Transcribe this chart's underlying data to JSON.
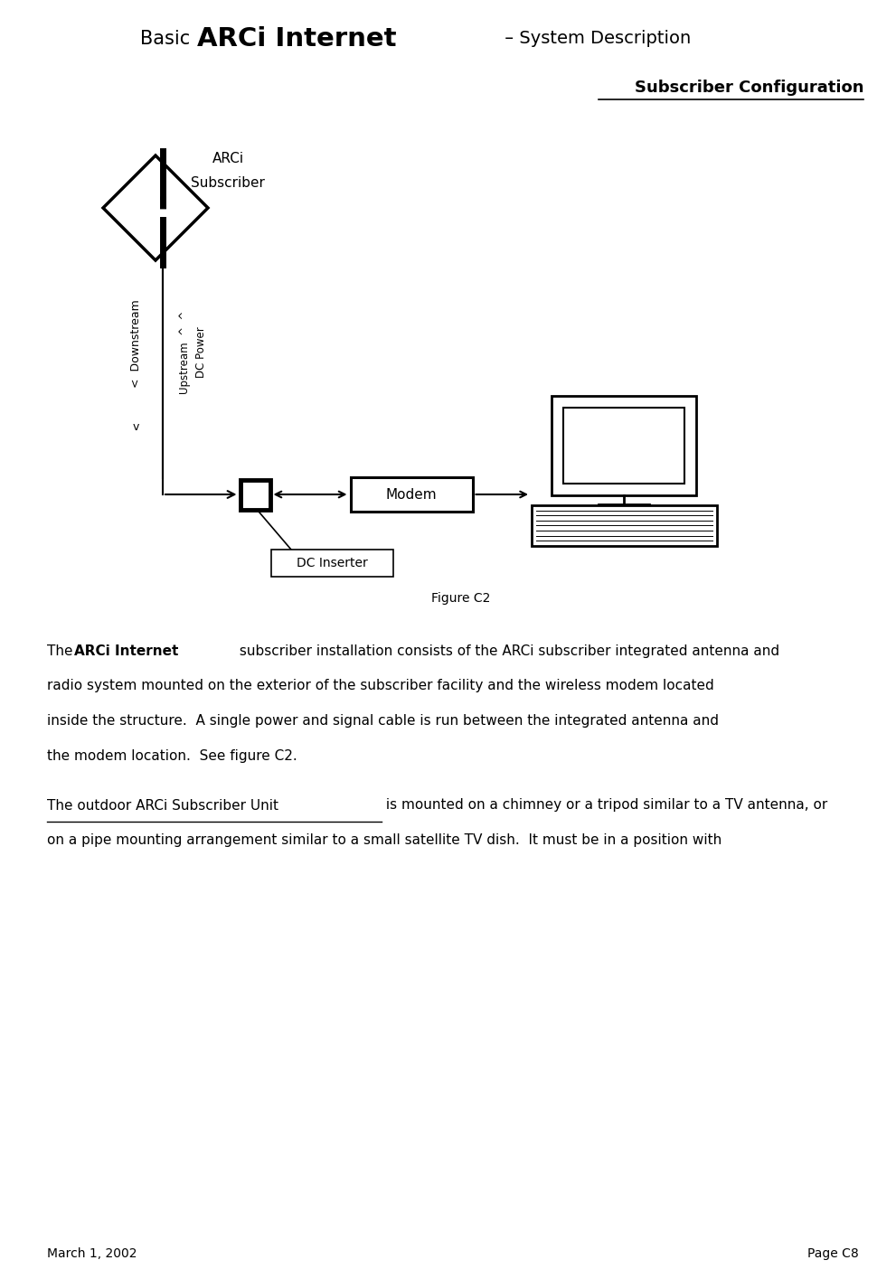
{
  "bg_color": "#ffffff",
  "fg_color": "#000000",
  "title_basic": "Basic ",
  "title_arci": "ARCi Internet",
  "title_dash": " – System Description",
  "section_title": "Subscriber Configuration",
  "label_arci_sub_line1": "ARCi",
  "label_arci_sub_line2": "Subscriber",
  "label_modem": "Modem",
  "label_dc": "DC Inserter",
  "label_upstream": "Upstream  ^  ^",
  "label_dcpower": "DC Power",
  "label_downstream": "<  Downstream",
  "label_down_arrow": "v",
  "figure_caption": "Figure C2",
  "footer_left": "March 1, 2002",
  "footer_right": "Page C8",
  "body1_pre": "The ",
  "body1_bold": "ARCi Internet",
  "body1_line1_rest": " subscriber installation consists of the ARCi subscriber integrated antenna and",
  "body1_line2": "radio system mounted on the exterior of the subscriber facility and the wireless modem located",
  "body1_line3": "inside the structure.  A single power and signal cable is run between the integrated antenna and",
  "body1_line4": "the modem location.  See figure C2.",
  "body2_underlined": "The outdoor ARCi Subscriber Unit",
  "body2_line1_rest": " is mounted on a chimney or a tripod similar to a TV antenna, or",
  "body2_line2": "on a pipe mounting arrangement similar to a small satellite TV dish.  It must be in a position with"
}
